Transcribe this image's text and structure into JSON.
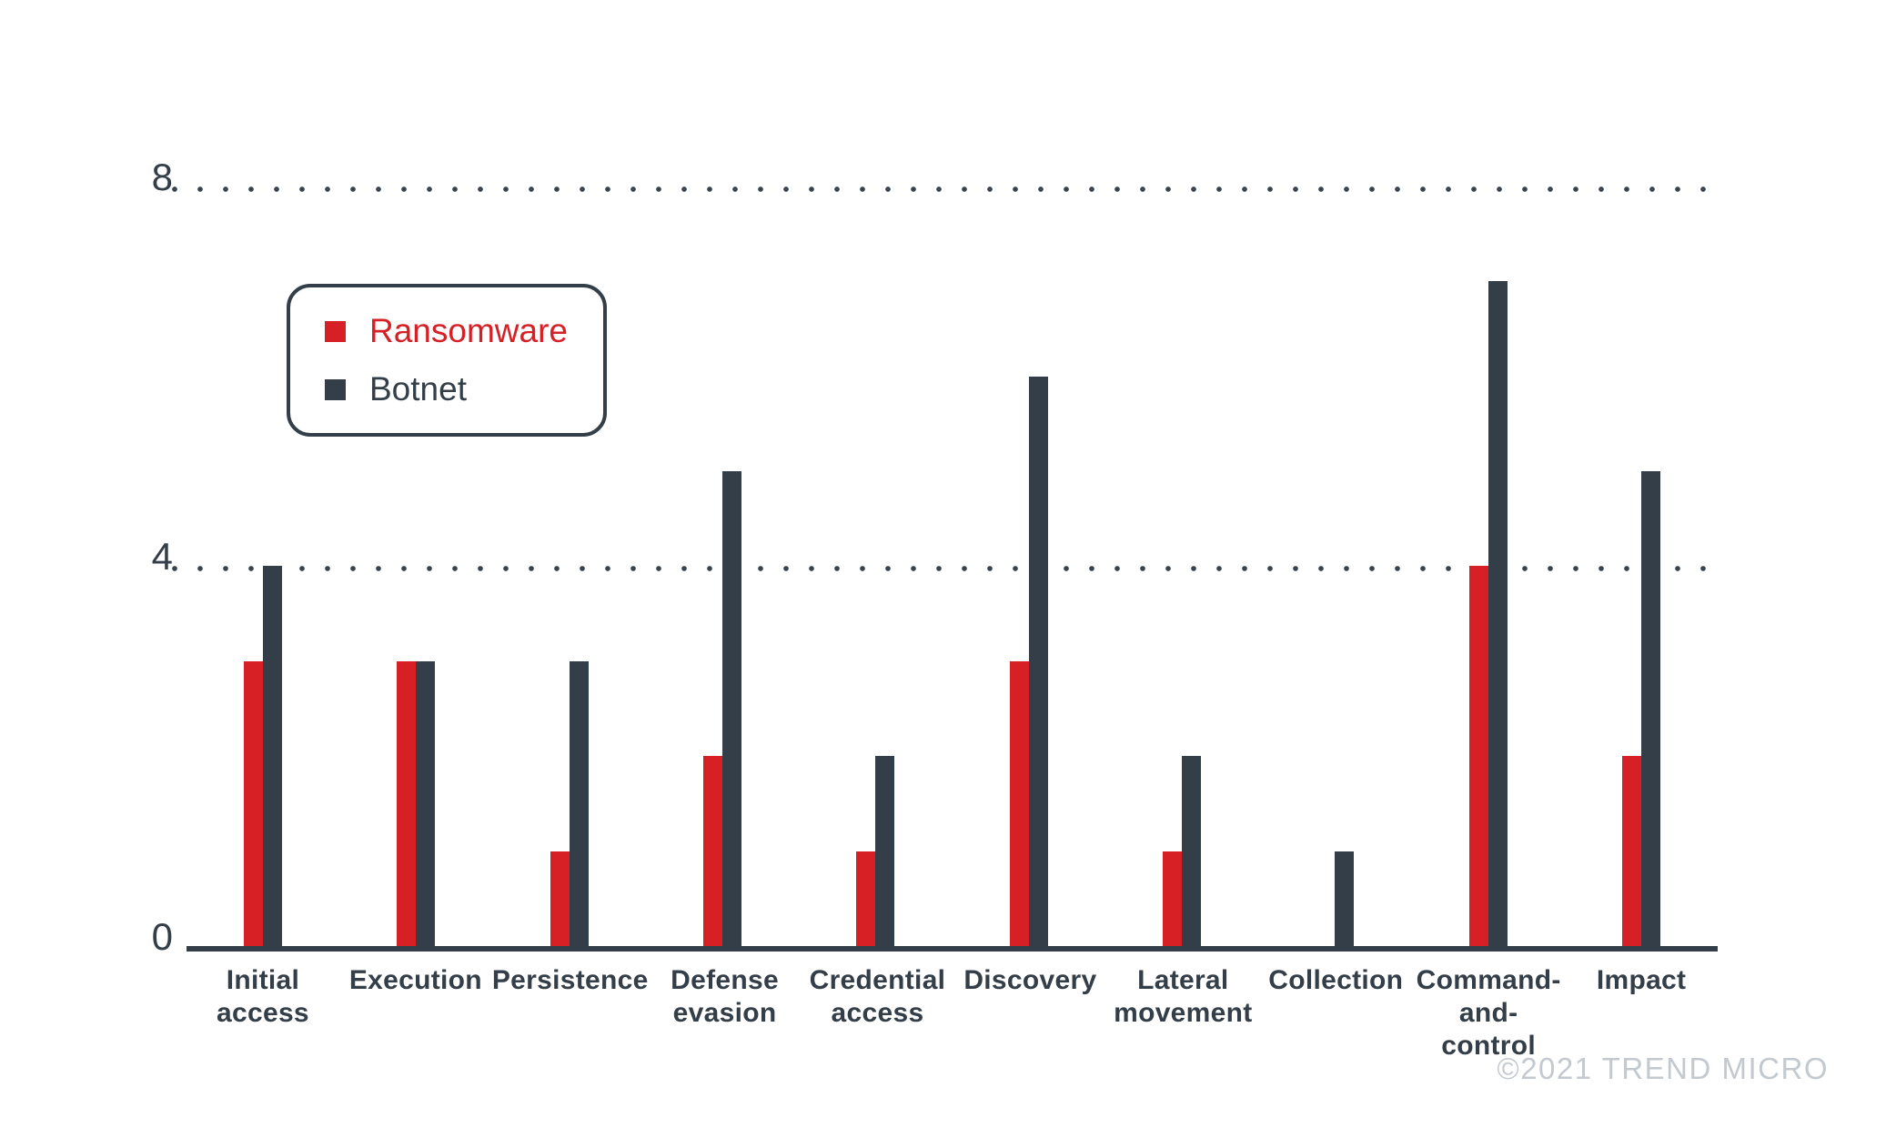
{
  "chart_data": {
    "type": "bar",
    "categories": [
      "Initial\naccess",
      "Execution",
      "Persistence",
      "Defense\nevasion",
      "Credential\naccess",
      "Discovery",
      "Lateral\nmovement",
      "Collection",
      "Command-\nand-control",
      "Impact"
    ],
    "series": [
      {
        "name": "Ransomware",
        "color": "#d71f26",
        "values": [
          3,
          3,
          1,
          2,
          1,
          3,
          1,
          0,
          4,
          2
        ]
      },
      {
        "name": "Botnet",
        "color": "#333e48",
        "values": [
          4,
          3,
          3,
          5,
          2,
          6,
          2,
          1,
          7,
          5
        ]
      }
    ],
    "title": "",
    "xlabel": "",
    "ylabel": "",
    "ylim": [
      0,
      8
    ],
    "yticks": [
      0,
      4,
      8
    ],
    "grid": "horizontal-dotted",
    "legend_position": "upper-left"
  },
  "footer": {
    "copyright": "©2021 TREND MICRO"
  },
  "colors": {
    "background": "#ffffff",
    "axis": "#333e48",
    "grid_dot": "#39434d",
    "copyright_text": "#c3c9cf"
  }
}
